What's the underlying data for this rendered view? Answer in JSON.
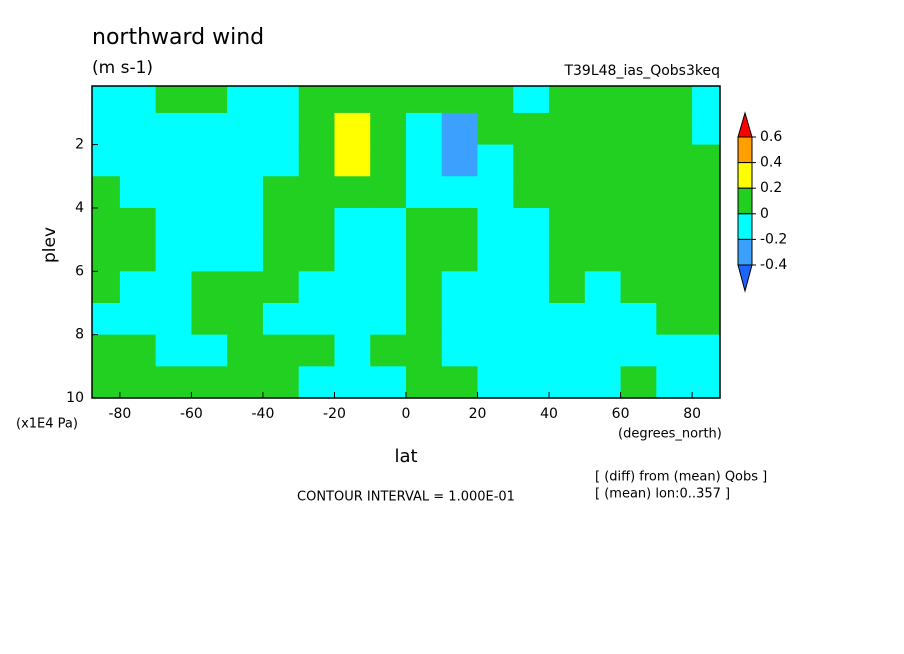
{
  "chart_data": {
    "type": "contour",
    "title": "northward wind",
    "subtitle": "(m s-1)",
    "tag": "T39L48_ias_Qobs3keq",
    "x_label": "lat",
    "x_unit": "(degrees_north)",
    "y_label": "plev",
    "y_unit": "(x1E4 Pa)",
    "annotation": "CONTOUR INTERVAL = 1.000E-01",
    "notes": [
      "[ (diff) from (mean) Qobs ]",
      "[ (mean) lon:0..357 ]"
    ],
    "xlim": [
      -87.8,
      87.8
    ],
    "ylim": [
      10,
      0.15
    ],
    "xticks": [
      -80,
      -60,
      -40,
      -20,
      0,
      20,
      40,
      60,
      80
    ],
    "yticks": [
      2,
      4,
      6,
      8,
      10
    ],
    "x": [
      -85,
      -75,
      -65,
      -55,
      -45,
      -35,
      -25,
      -15,
      -5,
      5,
      15,
      25,
      35,
      45,
      55,
      65,
      75,
      85
    ],
    "y": [
      0.5,
      1.5,
      2.5,
      3.5,
      4.5,
      5.5,
      6.5,
      7.5,
      8.5,
      9.5
    ],
    "z": [
      [
        -0.05,
        -0.05,
        0.05,
        0.05,
        -0.05,
        -0.05,
        0.05,
        0.05,
        0.05,
        0.05,
        0.05,
        0.05,
        -0.05,
        0.05,
        0.05,
        0.05,
        0.05,
        -0.05
      ],
      [
        -0.05,
        -0.05,
        -0.05,
        -0.05,
        -0.05,
        -0.05,
        0.05,
        0.35,
        0.15,
        -0.1,
        -0.35,
        0.05,
        0.05,
        0.05,
        0.05,
        0.05,
        0.05,
        -0.05
      ],
      [
        -0.05,
        -0.05,
        -0.05,
        -0.05,
        -0.05,
        -0.05,
        0.05,
        0.25,
        0.1,
        -0.05,
        -0.25,
        -0.05,
        0.05,
        0.05,
        0.05,
        0.05,
        0.05,
        0.05
      ],
      [
        0.05,
        -0.05,
        -0.05,
        -0.05,
        -0.05,
        0.05,
        0.05,
        0.05,
        0.05,
        -0.05,
        -0.05,
        -0.05,
        0.05,
        0.05,
        0.05,
        0.05,
        0.05,
        0.05
      ],
      [
        0.05,
        0.05,
        -0.05,
        -0.05,
        -0.05,
        0.05,
        0.05,
        -0.05,
        -0.05,
        0.05,
        0.05,
        -0.05,
        -0.05,
        0.05,
        0.05,
        0.05,
        0.05,
        0.05
      ],
      [
        0.05,
        0.05,
        -0.05,
        -0.05,
        -0.05,
        0.05,
        0.05,
        -0.05,
        -0.05,
        0.05,
        0.05,
        -0.05,
        -0.05,
        0.05,
        0.05,
        0.05,
        0.05,
        0.05
      ],
      [
        0.05,
        -0.05,
        -0.05,
        0.05,
        0.05,
        0.05,
        -0.05,
        -0.05,
        -0.05,
        0.05,
        -0.05,
        -0.05,
        -0.05,
        0.05,
        -0.05,
        0.05,
        0.05,
        0.05
      ],
      [
        -0.05,
        -0.05,
        -0.05,
        0.05,
        0.05,
        -0.05,
        -0.05,
        -0.05,
        -0.05,
        0.05,
        -0.05,
        -0.05,
        -0.05,
        -0.05,
        -0.05,
        -0.05,
        0.05,
        0.05
      ],
      [
        0.05,
        0.05,
        -0.05,
        -0.05,
        0.05,
        0.05,
        0.05,
        -0.05,
        0.05,
        0.05,
        -0.05,
        -0.05,
        -0.05,
        -0.05,
        -0.05,
        -0.05,
        -0.05,
        -0.05
      ],
      [
        0.05,
        0.05,
        0.05,
        0.05,
        0.05,
        0.05,
        -0.05,
        -0.05,
        -0.05,
        0.05,
        0.05,
        -0.05,
        -0.05,
        -0.05,
        -0.05,
        0.05,
        -0.05,
        -0.05
      ]
    ],
    "levels": [
      -0.4,
      -0.2,
      0,
      0.2,
      0.4,
      0.6
    ],
    "colors": [
      "#1e64ff",
      "#3ca0ff",
      "#00ffff",
      "#22d022",
      "#ffff00",
      "#ffa000",
      "#ff0000"
    ]
  }
}
